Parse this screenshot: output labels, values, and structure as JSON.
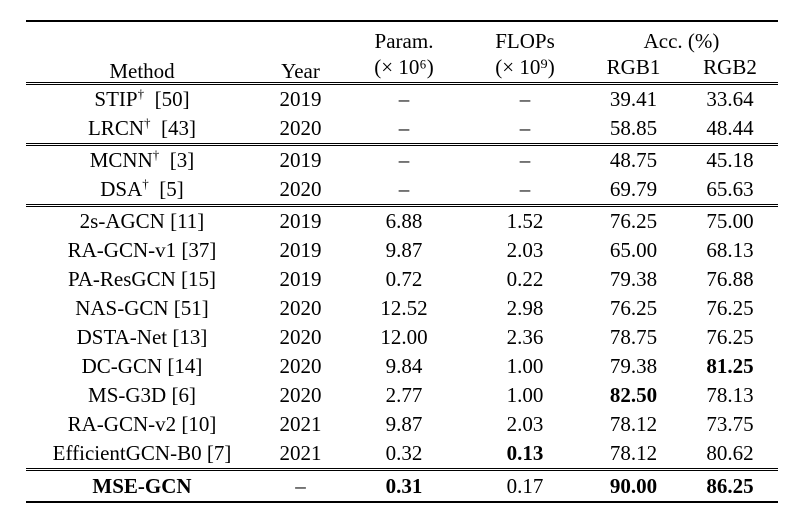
{
  "headers": {
    "method": "Method",
    "year": "Year",
    "param": "Param.",
    "param_unit": "(× 10⁶)",
    "flops": "FLOPs",
    "flops_unit": "(× 10⁹)",
    "acc": "Acc. (%)",
    "rgb1": "RGB1",
    "rgb2": "RGB2"
  },
  "groups": [
    [
      {
        "method": "STIP",
        "dagger": "†",
        "ref": "[50]",
        "year": "2019",
        "param": "–",
        "flops": "–",
        "rgb1": "39.41",
        "rgb2": "33.64"
      },
      {
        "method": "LRCN",
        "dagger": "†",
        "ref": "[43]",
        "year": "2020",
        "param": "–",
        "flops": "–",
        "rgb1": "58.85",
        "rgb2": "48.44"
      }
    ],
    [
      {
        "method": "MCNN",
        "dagger": "†",
        "ref": "[3]",
        "year": "2019",
        "param": "–",
        "flops": "–",
        "rgb1": "48.75",
        "rgb2": "45.18"
      },
      {
        "method": "DSA",
        "dagger": "†",
        "ref": "[5]",
        "year": "2020",
        "param": "–",
        "flops": "–",
        "rgb1": "69.79",
        "rgb2": "65.63"
      }
    ],
    [
      {
        "method": "2s-AGCN [11]",
        "year": "2019",
        "param": "6.88",
        "flops": "1.52",
        "rgb1": "76.25",
        "rgb2": "75.00"
      },
      {
        "method": "RA-GCN-v1 [37]",
        "year": "2019",
        "param": "9.87",
        "flops": "2.03",
        "rgb1": "65.00",
        "rgb2": "68.13"
      },
      {
        "method": "PA-ResGCN [15]",
        "year": "2019",
        "param": "0.72",
        "flops": "0.22",
        "rgb1": "79.38",
        "rgb2": "76.88"
      },
      {
        "method": "NAS-GCN [51]",
        "year": "2020",
        "param": "12.52",
        "flops": "2.98",
        "rgb1": "76.25",
        "rgb2": "76.25"
      },
      {
        "method": "DSTA-Net [13]",
        "year": "2020",
        "param": "12.00",
        "flops": "2.36",
        "rgb1": "78.75",
        "rgb2": "76.25"
      },
      {
        "method": "DC-GCN [14]",
        "year": "2020",
        "param": "9.84",
        "flops": "1.00",
        "rgb1": "79.38",
        "rgb2": "81.25",
        "bold": [
          "rgb2"
        ]
      },
      {
        "method": "MS-G3D [6]",
        "year": "2020",
        "param": "2.77",
        "flops": "1.00",
        "rgb1": "82.50",
        "rgb2": "78.13",
        "bold": [
          "rgb1"
        ]
      },
      {
        "method": "RA-GCN-v2 [10]",
        "year": "2021",
        "param": "9.87",
        "flops": "2.03",
        "rgb1": "78.12",
        "rgb2": "73.75"
      },
      {
        "method": "EfficientGCN-B0 [7]",
        "year": "2021",
        "param": "0.32",
        "flops": "0.13",
        "rgb1": "78.12",
        "rgb2": "80.62",
        "bold": [
          "flops"
        ]
      }
    ]
  ],
  "final": {
    "method": "MSE-GCN",
    "year": "–",
    "param": "0.31",
    "flops": "0.17",
    "rgb1": "90.00",
    "rgb2": "86.25",
    "bold": [
      "method",
      "param",
      "rgb1",
      "rgb2"
    ]
  }
}
